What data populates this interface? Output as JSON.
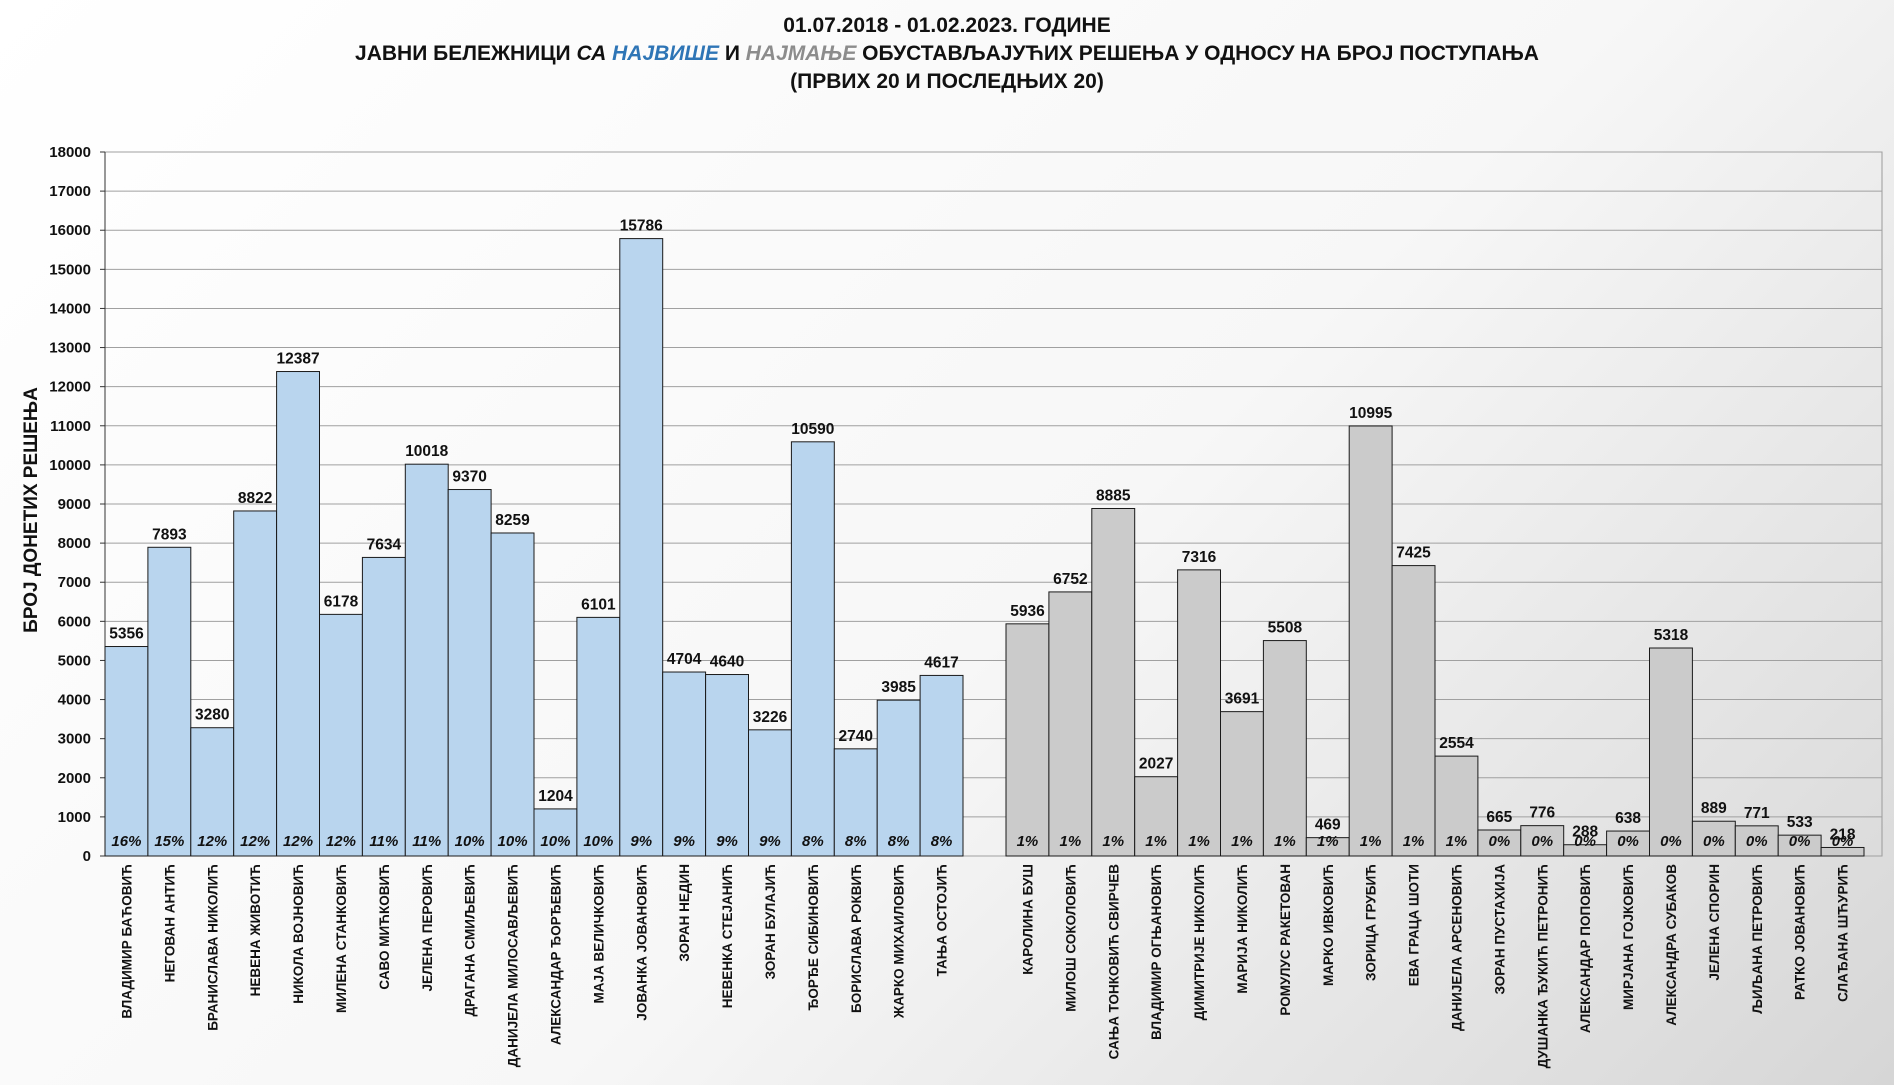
{
  "title": {
    "line1": "01.07.2018 - 01.02.2023. ГОДИНЕ",
    "line2_prefix": "ЈАВНИ БЕЛЕЖНИЦИ ",
    "line2_sa": "СА ",
    "line2_most": "НАЈВИШЕ",
    "line2_and": " И ",
    "line2_least": "НАЈМАЊЕ",
    "line2_suffix": " ОБУСТАВЉАЈУЋИХ РЕШЕЊА У ОДНОСУ НА БРОЈ ПОСТУПАЊА",
    "line3": "(ПРВИХ 20 И ПОСЛЕДЊИХ 20)"
  },
  "colors": {
    "top": "#b9d5ee",
    "bottom": "#cbcbcb",
    "stroke": "#1a1a1a"
  },
  "chart_data": {
    "type": "bar",
    "ylabel": "БРОЈ ДОНЕТИХ РЕШЕЊА",
    "ylim": [
      0,
      18000
    ],
    "ytick_step": 1000,
    "grid": true,
    "groups": [
      {
        "color": "#b9d5ee",
        "categories": [
          "ВЛАДИМИР БАЋОВИЋ",
          "НЕГОВАН АНТИЋ",
          "БРАНИСЛАВА НИКОЛИЋ",
          "НЕВЕНА ЖИВОТИЋ",
          "НИКОЛА ВОЈНОВИЋ",
          "МИЛЕНА СТАНКОВИЋ",
          "САВО МИЋКОВИЋ",
          "ЈЕЛЕНА ПЕРОВИЋ",
          "ДРАГАНА СМИЉЕВИЋ",
          "ДАНИЈЕЛА МИЛОСАВЉЕВИЋ",
          "АЛЕКСАНДАР ЂОРЂЕВИЋ",
          "МАЈА ВЕЛИЧКОВИЋ",
          "ЈОВАНКА ЈОВАНОВИЋ",
          "ЗОРАН НЕДИН",
          "НЕВЕНКА СТЕЈАНИЋ",
          "ЗОРАН БУЛАЈИЋ",
          "ЂОРЂЕ СИБИНОВИЋ",
          "БОРИСЛАВА РОКВИЋ",
          "ЖАРКО МИХАИЛОВИЋ",
          "ТАЊА ОСТОЈИЋ"
        ],
        "values": [
          5356,
          7893,
          3280,
          8822,
          12387,
          6178,
          7634,
          10018,
          9370,
          8259,
          1204,
          6101,
          15786,
          4704,
          4640,
          3226,
          10590,
          2740,
          3985,
          4617
        ],
        "percents": [
          "16%",
          "15%",
          "12%",
          "12%",
          "12%",
          "12%",
          "11%",
          "11%",
          "10%",
          "10%",
          "10%",
          "10%",
          "9%",
          "9%",
          "9%",
          "9%",
          "8%",
          "8%",
          "8%",
          "8%"
        ]
      },
      {
        "color": "#cbcbcb",
        "categories": [
          "КАРОЛИНА БУШ",
          "МИЛОШ СОКОЛОВИЋ",
          "САЊА ТОНКОВИЋ СВИРЧЕВ",
          "ВЛАДИМИР ОГЊАНОВИЋ",
          "ДИМИТРИЈЕ НИКОЛИЋ",
          "МАРИЈА НИКОЛИЋ",
          "РОМУЛУС РАКЕТОВАН",
          "МАРКО ИВКОВИЋ",
          "ЗОРИЦА ГРУБИЋ",
          "ЕВА ГРАЦА ШОТИ",
          "ДАНИЈЕЛА АРСЕНОВИЋ",
          "ЗОРАН ПУСТАХИЈА",
          "ДУШАНКА ЂУКИЋ ПЕТРОНИЋ",
          "АЛЕКСАНДАР ПОПОВИЋ",
          "МИРЈАНА ГОЈКОВИЋ",
          "АЛЕКСАНДРА СУБАКОВ",
          "ЈЕЛЕНА СПОРИН",
          "ЉИЉАНА ПЕТРОВИЋ",
          "РАТКО ЈОВАНОВИЋ",
          "СЛАЂАНА ШЋУРИЋ"
        ],
        "values": [
          5936,
          6752,
          8885,
          2027,
          7316,
          3691,
          5508,
          469,
          10995,
          7425,
          2554,
          665,
          776,
          288,
          638,
          5318,
          889,
          771,
          533,
          218
        ],
        "percents": [
          "1%",
          "1%",
          "1%",
          "1%",
          "1%",
          "1%",
          "1%",
          "1%",
          "1%",
          "1%",
          "1%",
          "0%",
          "0%",
          "0%",
          "0%",
          "0%",
          "0%",
          "0%",
          "0%",
          "0%"
        ]
      }
    ]
  }
}
